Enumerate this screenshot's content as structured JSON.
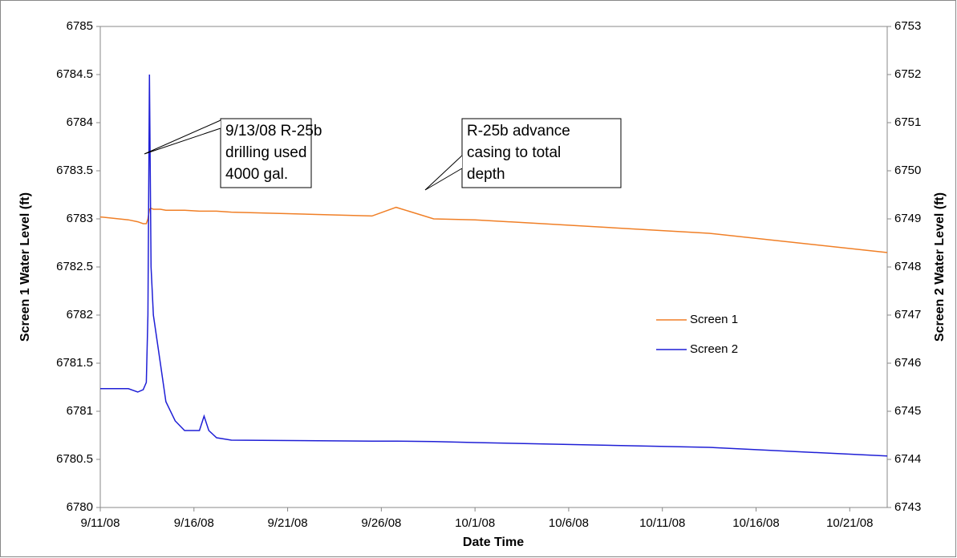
{
  "chart_data": {
    "type": "line",
    "xlabel": "Date Time",
    "ylabel": "Screen 1 Water Level (ft)",
    "y2label": "Screen 2 Water Level (ft)",
    "x": [
      "9/11/08 00:00",
      "9/12/08 12:00",
      "9/13/08 00:00",
      "9/13/08 07:00",
      "9/13/08 11:00",
      "9/13/08 13:00",
      "9/13/08 15:00",
      "9/13/08 17:00",
      "9/13/08 20:00",
      "9/14/08 05:00",
      "9/14/08 12:00",
      "9/15/08 00:00",
      "9/15/08 12:00",
      "9/16/08 07:00",
      "9/16/08 13:00",
      "9/16/08 19:00",
      "9/17/08 05:00",
      "9/18/08 00:00",
      "9/25/08 12:00",
      "9/26/08 19:00",
      "9/28/08 19:00",
      "10/1/08 00:00",
      "10/13/08 12:00",
      "10/23/08 00:00"
    ],
    "series": [
      {
        "name": "Screen 1",
        "color": "#f07f26",
        "values": [
          6783.02,
          6782.99,
          6782.97,
          6782.95,
          6782.95,
          6783.0,
          6783.1,
          6783.11,
          6783.1,
          6783.1,
          6783.09,
          6783.09,
          6783.09,
          6783.08,
          6783.08,
          6783.08,
          6783.08,
          6783.07,
          6783.03,
          6783.12,
          6783.0,
          6782.99,
          6782.85,
          6782.65
        ]
      },
      {
        "name": "Screen 2",
        "color": "#1f1fd6",
        "axis": "y2",
        "values": [
          6745.47,
          6745.47,
          6745.4,
          6745.45,
          6745.6,
          6747,
          6752,
          6748,
          6747,
          6746,
          6745.2,
          6744.8,
          6744.6,
          6744.6,
          6744.9,
          6744.6,
          6744.45,
          6744.4,
          6744.38,
          6744.38,
          6744.37,
          6744.35,
          6744.25,
          6744.07
        ]
      }
    ],
    "xlim": [
      "9/11/08",
      "10/23/08"
    ],
    "xticks": [
      "9/11/08",
      "9/16/08",
      "9/21/08",
      "9/26/08",
      "10/1/08",
      "10/6/08",
      "10/11/08",
      "10/16/08",
      "10/21/08"
    ],
    "ylim": [
      6780,
      6785
    ],
    "yticks": [
      6780,
      6780.5,
      6781,
      6781.5,
      6782,
      6782.5,
      6783,
      6783.5,
      6784,
      6784.5,
      6785
    ],
    "y2lim": [
      6743,
      6753
    ],
    "y2ticks": [
      6743,
      6744,
      6745,
      6746,
      6747,
      6748,
      6749,
      6750,
      6751,
      6752,
      6753
    ],
    "legend": "right",
    "annotations": [
      {
        "lines": [
          "9/13/08 R-25b",
          "drilling used",
          "4000 gal."
        ]
      },
      {
        "lines": [
          "R-25b advance",
          "casing to total",
          "depth"
        ]
      }
    ]
  }
}
